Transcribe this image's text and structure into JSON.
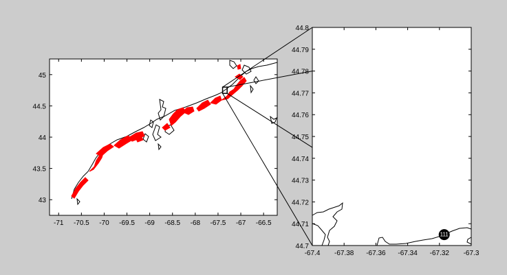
{
  "figure": {
    "background": "#cccccc",
    "axes_color": "#000000",
    "coast_color": "#000000",
    "highlight_color": "#ff0000"
  },
  "main_map": {
    "type": "map",
    "xlim": [
      -71.2,
      -66.2
    ],
    "ylim": [
      42.75,
      45.25
    ],
    "xticks": [
      "-71",
      "-70.5",
      "-70",
      "-69.5",
      "-69",
      "-68.5",
      "-68",
      "-67.5",
      "-67",
      "-66.5"
    ],
    "xtick_values": [
      -71,
      -70.5,
      -70,
      -69.5,
      -69,
      -68.5,
      -68,
      -67.5,
      -67,
      -66.5
    ],
    "yticks": [
      "43",
      "43.5",
      "44",
      "44.5",
      "45"
    ],
    "ytick_values": [
      43,
      43.5,
      44,
      44.5,
      45
    ],
    "zoom_box": {
      "lon": [
        -67.4,
        -67.3
      ],
      "lat": [
        44.7,
        44.8
      ]
    }
  },
  "inset_map": {
    "type": "map",
    "xlim": [
      -67.4,
      -67.3
    ],
    "ylim": [
      44.7,
      44.8
    ],
    "xticks": [
      "-67.4",
      "-67.38",
      "-67.36",
      "-67.34",
      "-67.32",
      "-67.3"
    ],
    "xtick_values": [
      -67.4,
      -67.38,
      -67.36,
      -67.34,
      -67.32,
      -67.3
    ],
    "yticks": [
      "44.7",
      "44.71",
      "44.72",
      "44.73",
      "44.74",
      "44.75",
      "44.76",
      "44.77",
      "44.78",
      "44.79",
      "44.8"
    ],
    "ytick_values": [
      44.7,
      44.71,
      44.72,
      44.73,
      44.74,
      44.75,
      44.76,
      44.77,
      44.78,
      44.79,
      44.8
    ],
    "marker": {
      "label": "111",
      "lon": -67.317,
      "lat": 44.705
    }
  }
}
